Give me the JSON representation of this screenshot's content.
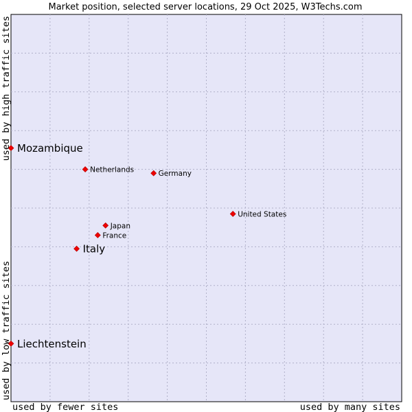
{
  "chart_data": {
    "type": "scatter",
    "title": "Market position, selected server locations, 29 Oct 2025, W3Techs.com",
    "xlabel_left": "used by fewer sites",
    "xlabel_right": "used by many sites",
    "ylabel_bottom": "used by low traffic sites",
    "ylabel_top": "used by high traffic sites",
    "xlim": [
      0,
      100
    ],
    "ylim": [
      0,
      100
    ],
    "grid": true,
    "colors": {
      "plot_bg": "#e6e6f8",
      "grid": "#b0b0c8",
      "marker": "#ee0000",
      "border": "#000000"
    },
    "points": [
      {
        "name": "Mozambique",
        "x": 0.0,
        "y": 65.5,
        "emphasis": true
      },
      {
        "name": "Netherlands",
        "x": 19.0,
        "y": 60.0,
        "emphasis": false
      },
      {
        "name": "Germany",
        "x": 36.5,
        "y": 59.0,
        "emphasis": false
      },
      {
        "name": "United States",
        "x": 56.8,
        "y": 48.5,
        "emphasis": false
      },
      {
        "name": "Japan",
        "x": 24.2,
        "y": 45.5,
        "emphasis": false
      },
      {
        "name": "France",
        "x": 22.2,
        "y": 43.0,
        "emphasis": false
      },
      {
        "name": "Italy",
        "x": 16.8,
        "y": 39.5,
        "emphasis": true
      },
      {
        "name": "Liechtenstein",
        "x": 0.0,
        "y": 15.0,
        "emphasis": true
      }
    ]
  }
}
